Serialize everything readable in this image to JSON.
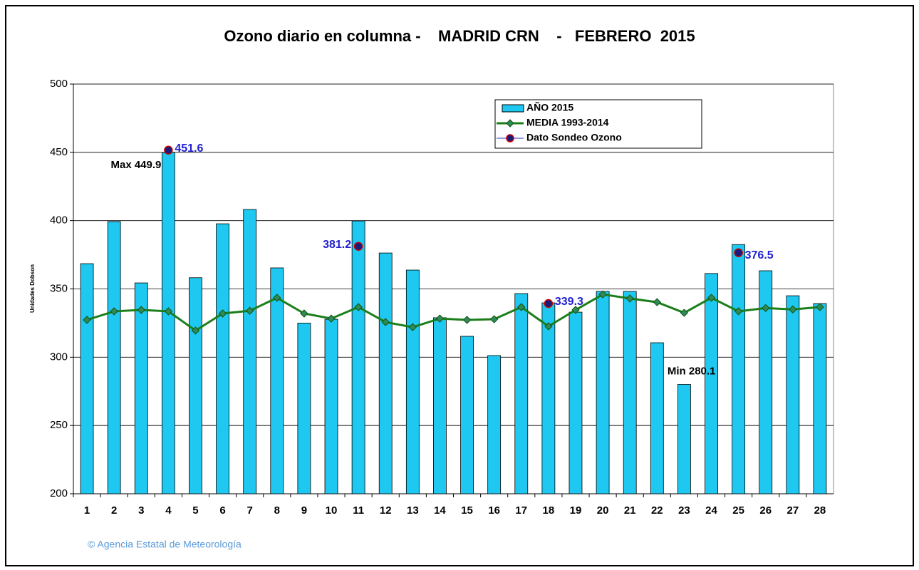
{
  "chart_data": {
    "type": "bar",
    "title": "Ozono diario en columna -    MADRID CRN    -   FEBRERO  2015",
    "y_label": "Unidades Dobson",
    "categories": [
      "1",
      "2",
      "3",
      "4",
      "5",
      "6",
      "7",
      "8",
      "9",
      "10",
      "11",
      "12",
      "13",
      "14",
      "15",
      "16",
      "17",
      "18",
      "19",
      "20",
      "21",
      "22",
      "23",
      "24",
      "25",
      "26",
      "27",
      "28"
    ],
    "series": [
      {
        "name": "AÑO 2015",
        "type": "bar",
        "color": "#1ec8f0",
        "values": [
          368.5,
          399.3,
          354.4,
          449.9,
          358.2,
          397.7,
          408.2,
          365.4,
          325,
          327.8,
          399.8,
          376.3,
          363.8,
          328.9,
          315.3,
          301.2,
          346.6,
          339.8,
          333,
          348.2,
          348.2,
          310.6,
          280.1,
          361.3,
          382.5,
          363.3,
          345,
          339.3
        ]
      },
      {
        "name": "MEDIA 1993-2014",
        "type": "line",
        "color": "#1a7f1a",
        "values": [
          327.3,
          333.6,
          334.6,
          333.6,
          319.5,
          332,
          334,
          343.5,
          332,
          328.3,
          336.7,
          325.7,
          322,
          328.3,
          327.3,
          327.8,
          336.7,
          322.6,
          334.6,
          346,
          343,
          340.3,
          332.5,
          343.5,
          333.6,
          336,
          335,
          336.7
        ]
      },
      {
        "name": "Dato Sondeo Ozono",
        "type": "scatter",
        "color": "#1a1a7a",
        "values": [
          null,
          null,
          null,
          451.6,
          null,
          null,
          null,
          null,
          null,
          null,
          381.2,
          null,
          null,
          null,
          null,
          null,
          null,
          339.3,
          null,
          null,
          null,
          null,
          null,
          null,
          376.5,
          null,
          null,
          null
        ]
      }
    ],
    "annotations": [
      "Max 449.9",
      "Min 280.1"
    ],
    "ylim": [
      200,
      500
    ],
    "yticks": [
      200,
      250,
      300,
      350,
      400,
      450,
      500
    ],
    "grid": true,
    "legend": "top-right",
    "footer": "© Agencia Estatal de Meteorología"
  }
}
